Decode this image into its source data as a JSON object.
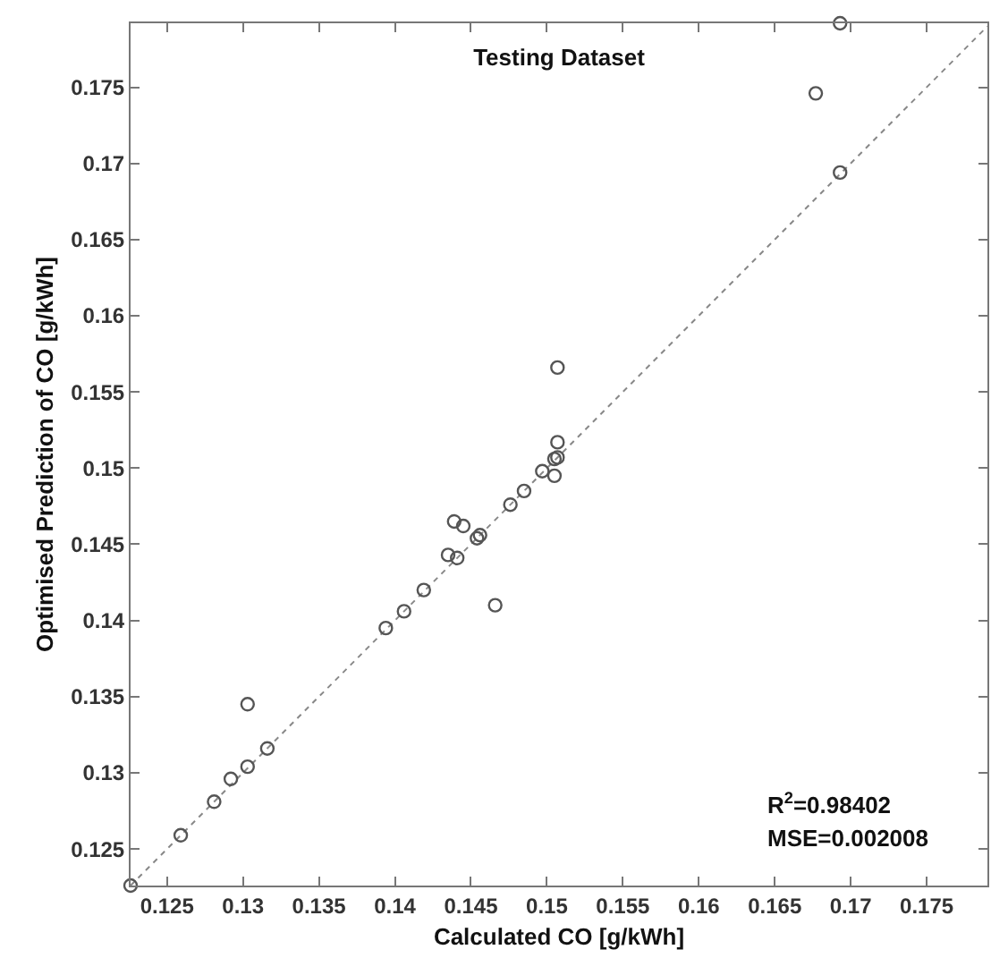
{
  "chart_data": {
    "type": "scatter",
    "title": "Testing Dataset",
    "xlabel": "Calculated CO [g/kWh]",
    "ylabel": "Optimised Prediction of CO [g/kWh]",
    "annotations": [
      "R$^{2}$=0.98402",
      "MSE=0.002008"
    ],
    "marker": "circle",
    "grid": false,
    "xlim": [
      0.1226,
      0.179
    ],
    "ylim": [
      0.1226,
      0.1792
    ],
    "xticks": [
      0.125,
      0.13,
      0.135,
      0.14,
      0.145,
      0.15,
      0.155,
      0.16,
      0.165,
      0.17,
      0.175
    ],
    "yticks": [
      0.125,
      0.13,
      0.135,
      0.14,
      0.145,
      0.15,
      0.155,
      0.16,
      0.165,
      0.17,
      0.175
    ],
    "series": [
      {
        "color": "#555555",
        "x": [
          0.1226,
          0.1259,
          0.1281,
          0.1292,
          0.1303,
          0.1303,
          0.1316,
          0.1394,
          0.1406,
          0.1419,
          0.1435,
          0.1441,
          0.1439,
          0.1445,
          0.1454,
          0.1456,
          0.1466,
          0.1476,
          0.1485,
          0.1497,
          0.1505,
          0.1505,
          0.1507,
          0.1507,
          0.1507,
          0.1677,
          0.1693,
          0.1693
        ],
        "values": [
          0.1226,
          0.1259,
          0.1281,
          0.1296,
          0.1304,
          0.1345,
          0.1316,
          0.1395,
          0.1406,
          0.142,
          0.1443,
          0.1441,
          0.1465,
          0.1462,
          0.1454,
          0.1456,
          0.141,
          0.1476,
          0.1485,
          0.1498,
          0.1495,
          0.1506,
          0.1507,
          0.1517,
          0.1566,
          0.1746,
          0.1694,
          0.1792
        ]
      },
      {
        "type": "line",
        "color": "#888888",
        "line_style": "dotted",
        "marker": "none",
        "x": [
          0.1226,
          0.179
        ],
        "values": [
          0.1226,
          0.179
        ]
      }
    ]
  }
}
